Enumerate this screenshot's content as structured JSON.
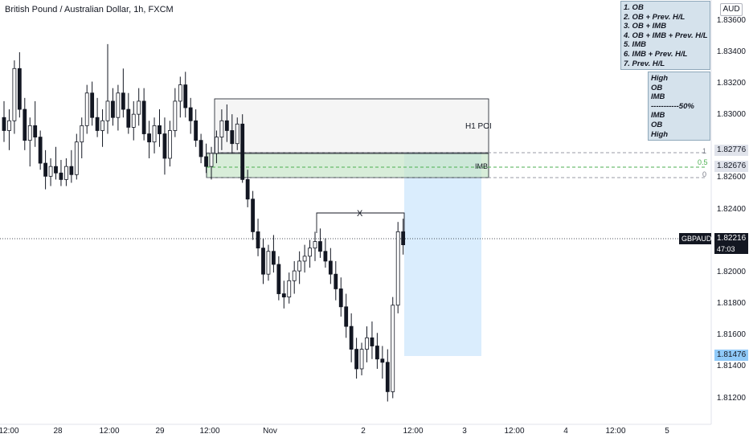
{
  "title": "British Pound / Australian Dollar, 1h, FXCM",
  "currency": "AUD",
  "legend": {
    "items": [
      "1. OB",
      "2. OB + Prev. H/L",
      "3. OB + IMB",
      "4. OB + IMB + Prev. H/L",
      "5. IMB",
      "6. IMB + Prev. H/L",
      "7.  Prev. H/L"
    ]
  },
  "note": {
    "lines": [
      "High",
      "OB",
      "IMB",
      "-----------50%",
      "IMB",
      "OB",
      "High"
    ]
  },
  "y_axis": {
    "ticks": [
      "1.83600",
      "1.83400",
      "1.83200",
      "1.83000",
      "1.82600",
      "1.82400",
      "1.82000",
      "1.81800",
      "1.81600",
      "1.81400",
      "1.81200"
    ]
  },
  "x_axis": {
    "ticks": [
      "12:00",
      "28",
      "12:00",
      "29",
      "12:00",
      "Nov",
      "2",
      "12:00",
      "3",
      "12:00",
      "4",
      "12:00",
      "5"
    ]
  },
  "tags": {
    "fib_top": "1.82776",
    "fib_mid": "1.82676",
    "symbol": "GBPAUD",
    "current": "1.82216",
    "countdown": "47:03",
    "target": "1.81476"
  },
  "annotations": {
    "poi": "H1 POI",
    "imb": "IMB",
    "fib_1": "1",
    "fib_05": "0.5",
    "fib_0": "0",
    "x_mark": "X"
  },
  "colors": {
    "up": "#ffffff",
    "down": "#131722",
    "target_zone": "#bbdefb",
    "imb_zone": "#c8e6c9",
    "current_tag": "#131722",
    "target_tag": "#90caf9",
    "fib_mid": "#4caf50"
  },
  "chart_data": {
    "type": "candlestick",
    "interval": "1h",
    "symbol": "GBPAUD",
    "current_price": 1.82216,
    "ylim": [
      1.8112,
      1.8372
    ],
    "zones": {
      "h1_poi": [
        1.8277,
        1.831
      ],
      "imb": [
        1.8262,
        1.8277
      ],
      "target_box": [
        1.8147,
        1.8282
      ]
    },
    "fib_levels": {
      "1": 1.82776,
      "0.5": 1.82676,
      "0": 1.8259
    },
    "candles": [
      [
        1.83,
        1.831,
        1.8285,
        1.8292
      ],
      [
        1.8292,
        1.8305,
        1.828,
        1.8298
      ],
      [
        1.8298,
        1.8335,
        1.829,
        1.833
      ],
      [
        1.833,
        1.834,
        1.83,
        1.8305
      ],
      [
        1.8305,
        1.8312,
        1.828,
        1.8286
      ],
      [
        1.8286,
        1.83,
        1.827,
        1.8295
      ],
      [
        1.8295,
        1.831,
        1.8282,
        1.8288
      ],
      [
        1.8288,
        1.8292,
        1.8268,
        1.8272
      ],
      [
        1.8272,
        1.828,
        1.8256,
        1.8264
      ],
      [
        1.8264,
        1.8275,
        1.8258,
        1.827
      ],
      [
        1.827,
        1.8282,
        1.8262,
        1.8266
      ],
      [
        1.8266,
        1.8274,
        1.8258,
        1.8262
      ],
      [
        1.8262,
        1.8275,
        1.8258,
        1.827
      ],
      [
        1.827,
        1.828,
        1.826,
        1.8265
      ],
      [
        1.8265,
        1.829,
        1.8262,
        1.8285
      ],
      [
        1.8285,
        1.83,
        1.8275,
        1.8295
      ],
      [
        1.8295,
        1.832,
        1.829,
        1.8315
      ],
      [
        1.8315,
        1.8322,
        1.8295,
        1.83
      ],
      [
        1.83,
        1.8312,
        1.8288,
        1.8292
      ],
      [
        1.8292,
        1.8305,
        1.8282,
        1.8298
      ],
      [
        1.8298,
        1.8345,
        1.829,
        1.831
      ],
      [
        1.831,
        1.8318,
        1.8295,
        1.83
      ],
      [
        1.83,
        1.832,
        1.8292,
        1.8315
      ],
      [
        1.8315,
        1.833,
        1.83,
        1.8305
      ],
      [
        1.8305,
        1.8315,
        1.829,
        1.8294
      ],
      [
        1.8294,
        1.831,
        1.8286,
        1.8302
      ],
      [
        1.8302,
        1.8318,
        1.8295,
        1.831
      ],
      [
        1.831,
        1.8318,
        1.8286,
        1.829
      ],
      [
        1.829,
        1.8298,
        1.8275,
        1.8285
      ],
      [
        1.8285,
        1.83,
        1.8278,
        1.8295
      ],
      [
        1.8295,
        1.8305,
        1.8282,
        1.829
      ],
      [
        1.829,
        1.83,
        1.8265,
        1.8275
      ],
      [
        1.8275,
        1.8298,
        1.827,
        1.8292
      ],
      [
        1.8292,
        1.8318,
        1.8288,
        1.831
      ],
      [
        1.831,
        1.8325,
        1.83,
        1.832
      ],
      [
        1.832,
        1.8328,
        1.83,
        1.8306
      ],
      [
        1.8306,
        1.8312,
        1.829,
        1.8298
      ],
      [
        1.8298,
        1.8305,
        1.8282,
        1.8286
      ],
      [
        1.8286,
        1.829,
        1.8272,
        1.8276
      ],
      [
        1.8276,
        1.8284,
        1.8266,
        1.827
      ],
      [
        1.827,
        1.8282,
        1.8262,
        1.8278
      ],
      [
        1.8278,
        1.8292,
        1.8272,
        1.8288
      ],
      [
        1.8288,
        1.8305,
        1.828,
        1.8298
      ],
      [
        1.8298,
        1.8308,
        1.8285,
        1.8292
      ],
      [
        1.8292,
        1.8302,
        1.8278,
        1.8284
      ],
      [
        1.8284,
        1.83,
        1.828,
        1.8296
      ],
      [
        1.8296,
        1.8302,
        1.826,
        1.8262
      ],
      [
        1.8262,
        1.8268,
        1.8245,
        1.825
      ],
      [
        1.825,
        1.8255,
        1.8225,
        1.823
      ],
      [
        1.823,
        1.8238,
        1.8215,
        1.822
      ],
      [
        1.822,
        1.8226,
        1.8198,
        1.8204
      ],
      [
        1.8204,
        1.8222,
        1.82,
        1.8218
      ],
      [
        1.8218,
        1.8228,
        1.8205,
        1.821
      ],
      [
        1.821,
        1.8215,
        1.8188,
        1.8192
      ],
      [
        1.8192,
        1.82,
        1.8183,
        1.819
      ],
      [
        1.819,
        1.8205,
        1.8186,
        1.82
      ],
      [
        1.82,
        1.8212,
        1.8192,
        1.8206
      ],
      [
        1.8206,
        1.8218,
        1.8198,
        1.8212
      ],
      [
        1.8212,
        1.8222,
        1.8205,
        1.8215
      ],
      [
        1.8215,
        1.8225,
        1.8208,
        1.822
      ],
      [
        1.822,
        1.823,
        1.8212,
        1.8224
      ],
      [
        1.8224,
        1.8232,
        1.8214,
        1.8218
      ],
      [
        1.8218,
        1.8226,
        1.8208,
        1.8212
      ],
      [
        1.8212,
        1.822,
        1.8198,
        1.8204
      ],
      [
        1.8204,
        1.8212,
        1.8188,
        1.8195
      ],
      [
        1.8195,
        1.8202,
        1.8178,
        1.8184
      ],
      [
        1.8184,
        1.8192,
        1.8165,
        1.8172
      ],
      [
        1.8172,
        1.818,
        1.815,
        1.8158
      ],
      [
        1.8158,
        1.8165,
        1.814,
        1.8146
      ],
      [
        1.8146,
        1.8162,
        1.8142,
        1.8158
      ],
      [
        1.8158,
        1.8172,
        1.815,
        1.8165
      ],
      [
        1.8165,
        1.8175,
        1.8152,
        1.816
      ],
      [
        1.816,
        1.8168,
        1.8146,
        1.8152
      ],
      [
        1.8152,
        1.816,
        1.814,
        1.815
      ],
      [
        1.815,
        1.8158,
        1.8126,
        1.8132
      ],
      [
        1.8132,
        1.819,
        1.8128,
        1.8185
      ],
      [
        1.8185,
        1.8236,
        1.818,
        1.823
      ],
      [
        1.823,
        1.8238,
        1.8216,
        1.8222
      ]
    ]
  }
}
